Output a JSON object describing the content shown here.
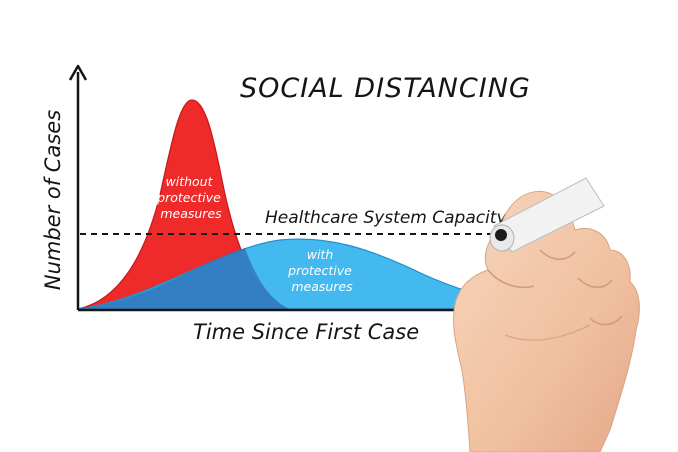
{
  "title": "SOCIAL DISTANCING",
  "y_axis_label": "Number of Cases",
  "x_axis_label": "Time Since First Case",
  "capacity_label": "Healthcare System Capacity",
  "curves": {
    "without": {
      "label_lines": [
        "without",
        "protective",
        "measures"
      ],
      "color": "#ee2a2a"
    },
    "with": {
      "label_lines": [
        "with",
        "protective",
        "measures"
      ],
      "color": "#3ab5ee"
    }
  },
  "colors": {
    "ink": "#151515",
    "background": "#ffffff",
    "skin": "#f2c7a6"
  },
  "icons": {
    "marker": "marker-pen-icon",
    "hand": "hand-illustration"
  }
}
